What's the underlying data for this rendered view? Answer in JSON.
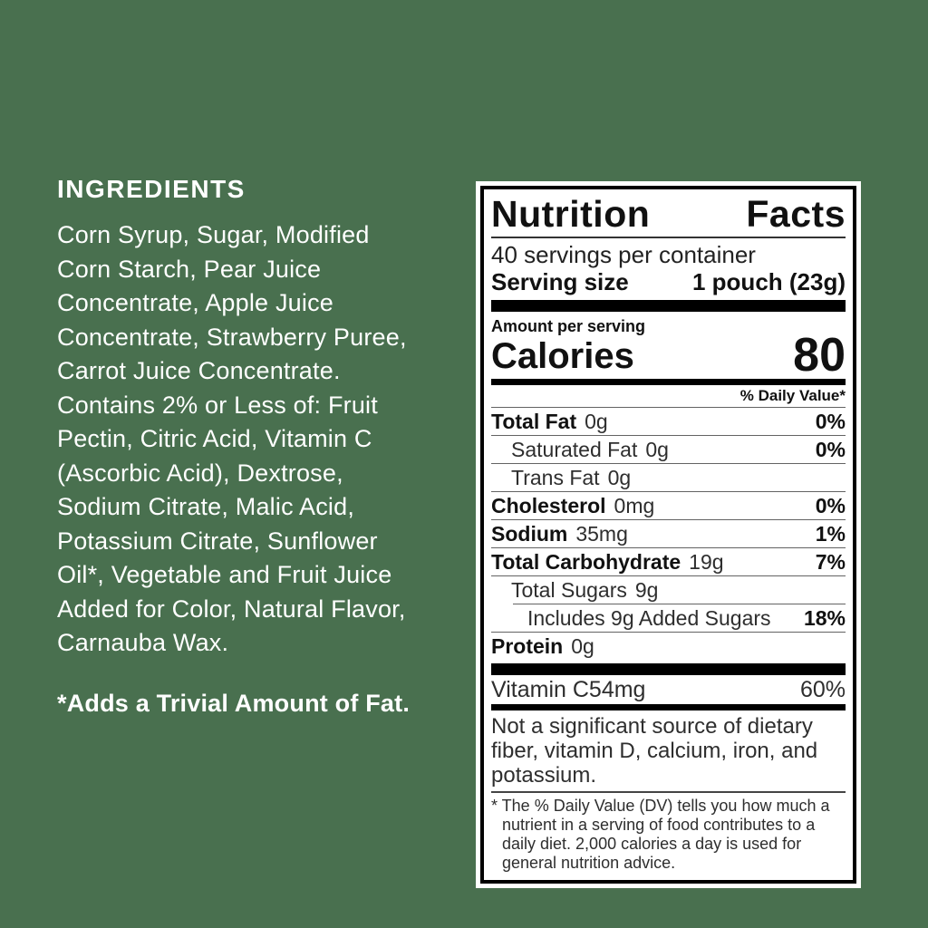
{
  "background_color": "#49704F",
  "ingredients": {
    "heading": "INGREDIENTS",
    "body": "Corn Syrup, Sugar, Modified\nCorn Starch, Pear Juice\nConcentrate, Apple Juice\nConcentrate, Strawberry Puree,\nCarrot Juice Concentrate.\nContains 2% or Less of: Fruit\nPectin, Citric Acid, Vitamin C\n(Ascorbic Acid), Dextrose,\nSodium Citrate, Malic Acid,\nPotassium Citrate, Sunflower\nOil*, Vegetable and Fruit Juice\nAdded for Color, Natural Flavor,\nCarnauba Wax.",
    "footnote": "*Adds a Trivial Amount of Fat."
  },
  "nutrition": {
    "title_left": "Nutrition",
    "title_right": "Facts",
    "servings_per_container": "40 servings per container",
    "serving_size_label": "Serving size",
    "serving_size_value": "1 pouch (23g)",
    "amount_per_serving": "Amount per serving",
    "calories_label": "Calories",
    "calories_value": "80",
    "daily_value_header": "% Daily Value*",
    "rows": [
      {
        "name": "Total Fat",
        "amount": "0g",
        "dv": "0%"
      },
      {
        "name": "Saturated Fat",
        "amount": "0g",
        "dv": "0%"
      },
      {
        "name": "Trans Fat",
        "amount": "0g",
        "dv": ""
      },
      {
        "name": "Cholesterol",
        "amount": "0mg",
        "dv": "0%"
      },
      {
        "name": "Sodium",
        "amount": "35mg",
        "dv": "1%"
      },
      {
        "name": "Total Carbohydrate",
        "amount": "19g",
        "dv": "7%"
      },
      {
        "name": "Total Sugars",
        "amount": "9g",
        "dv": ""
      },
      {
        "name": "Includes 9g Added Sugars",
        "amount": "",
        "dv": "18%"
      },
      {
        "name": "Protein",
        "amount": "0g",
        "dv": ""
      }
    ],
    "vitamin_row": {
      "name": "Vitamin C",
      "amount": "54mg",
      "dv": "60%"
    },
    "not_significant": "Not a significant source of dietary fiber, vitamin D, calcium, iron, and potassium.",
    "footnote": "* The % Daily Value (DV) tells you how much a nutrient in a serving of food contributes to a daily diet. 2,000 calories a day is used for general nutrition advice."
  }
}
